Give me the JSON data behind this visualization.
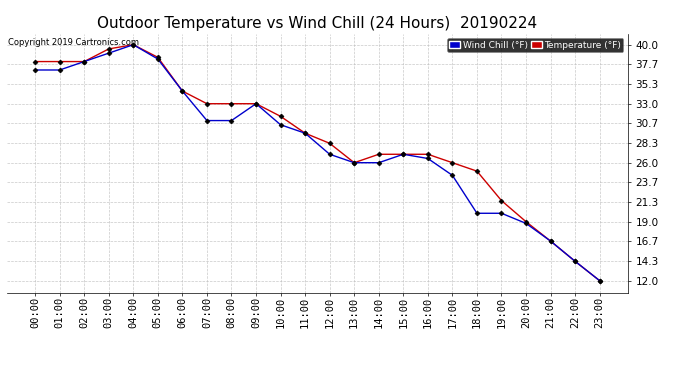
{
  "title": "Outdoor Temperature vs Wind Chill (24 Hours)  20190224",
  "copyright": "Copyright 2019 Cartronics.com",
  "legend_wind_chill": "Wind Chill (°F)",
  "legend_temperature": "Temperature (°F)",
  "x_labels": [
    "00:00",
    "01:00",
    "02:00",
    "03:00",
    "04:00",
    "05:00",
    "06:00",
    "07:00",
    "08:00",
    "09:00",
    "10:00",
    "11:00",
    "12:00",
    "13:00",
    "14:00",
    "15:00",
    "16:00",
    "17:00",
    "18:00",
    "19:00",
    "20:00",
    "21:00",
    "22:00",
    "23:00"
  ],
  "temperature": [
    38.0,
    38.0,
    38.0,
    39.5,
    40.0,
    38.5,
    34.5,
    33.0,
    33.0,
    33.0,
    31.5,
    29.5,
    28.3,
    26.0,
    27.0,
    27.0,
    27.0,
    26.0,
    25.0,
    21.5,
    19.0,
    16.7,
    14.3,
    12.0
  ],
  "wind_chill": [
    37.0,
    37.0,
    38.0,
    39.0,
    40.0,
    38.3,
    34.5,
    31.0,
    31.0,
    33.0,
    30.5,
    29.5,
    27.0,
    26.0,
    26.0,
    27.0,
    26.5,
    24.5,
    20.0,
    20.0,
    18.8,
    16.7,
    14.3,
    12.0
  ],
  "ylim_min": 10.6,
  "ylim_max": 41.3,
  "yticks": [
    12.0,
    14.3,
    16.7,
    19.0,
    21.3,
    23.7,
    26.0,
    28.3,
    30.7,
    33.0,
    35.3,
    37.7,
    40.0
  ],
  "bg_color": "#ffffff",
  "grid_color": "#bbbbbb",
  "temp_color": "#cc0000",
  "wind_color": "#0000cc",
  "title_fontsize": 11,
  "tick_fontsize": 7.5,
  "copyright_fontsize": 6
}
